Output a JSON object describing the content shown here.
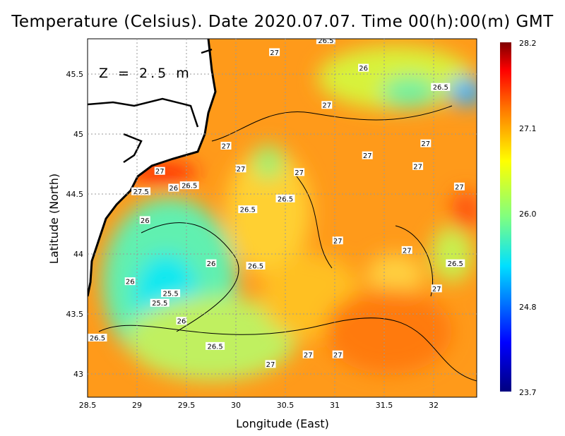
{
  "title": "Temperature (Celsius). Date 2020.07.07. Time 00(h):00(m) GMT",
  "depth_label": "Z = 2.5 m",
  "chart_data": {
    "type": "heatmap",
    "title": "Temperature (Celsius). Date 2020.07.07. Time 00(h):00(m) GMT",
    "xlabel": "Longitude (East)",
    "ylabel": "Latitude (North)",
    "xlim": [
      28.5,
      32.4
    ],
    "ylim": [
      42.8,
      45.8
    ],
    "xticks": [
      "28.5",
      "29",
      "29.5",
      "30",
      "30.5",
      "31",
      "31.5",
      "32"
    ],
    "yticks": [
      "43",
      "43.5",
      "44",
      "44.5",
      "45",
      "45.5"
    ],
    "grid": true,
    "colorbar": {
      "min": 23.7,
      "max": 28.2,
      "ticks": [
        "28.2",
        "27.1",
        "26.0",
        "24.8",
        "23.7"
      ]
    },
    "contour_labels": [
      {
        "t": "26.5",
        "lon": 30.91,
        "lat": 45.78
      },
      {
        "t": "27",
        "lon": 30.39,
        "lat": 45.68
      },
      {
        "t": "26",
        "lon": 31.29,
        "lat": 45.55
      },
      {
        "t": "26.5",
        "lon": 32.07,
        "lat": 45.39
      },
      {
        "t": "27",
        "lon": 30.92,
        "lat": 45.24
      },
      {
        "t": "27",
        "lon": 29.9,
        "lat": 44.9
      },
      {
        "t": "27",
        "lon": 31.33,
        "lat": 44.82
      },
      {
        "t": "27",
        "lon": 31.92,
        "lat": 44.92
      },
      {
        "t": "27",
        "lon": 29.23,
        "lat": 44.69
      },
      {
        "t": "27",
        "lon": 30.05,
        "lat": 44.71
      },
      {
        "t": "27",
        "lon": 30.64,
        "lat": 44.68
      },
      {
        "t": "27",
        "lon": 31.84,
        "lat": 44.73
      },
      {
        "t": "27.5",
        "lon": 29.04,
        "lat": 44.52
      },
      {
        "t": "26",
        "lon": 29.37,
        "lat": 44.55
      },
      {
        "t": "26.5",
        "lon": 29.53,
        "lat": 44.57
      },
      {
        "t": "26.5",
        "lon": 30.12,
        "lat": 44.37
      },
      {
        "t": "26.5",
        "lon": 30.5,
        "lat": 44.46
      },
      {
        "t": "27",
        "lon": 32.26,
        "lat": 44.56
      },
      {
        "t": "26",
        "lon": 29.08,
        "lat": 44.28
      },
      {
        "t": "27",
        "lon": 31.03,
        "lat": 44.11
      },
      {
        "t": "27",
        "lon": 31.73,
        "lat": 44.03
      },
      {
        "t": "26",
        "lon": 29.75,
        "lat": 43.92
      },
      {
        "t": "26.5",
        "lon": 30.2,
        "lat": 43.9
      },
      {
        "t": "26.5",
        "lon": 32.22,
        "lat": 43.92
      },
      {
        "t": "26",
        "lon": 28.93,
        "lat": 43.77
      },
      {
        "t": "25.5",
        "lon": 29.34,
        "lat": 43.67
      },
      {
        "t": "25.5",
        "lon": 29.23,
        "lat": 43.59
      },
      {
        "t": "26",
        "lon": 29.45,
        "lat": 43.44
      },
      {
        "t": "27",
        "lon": 32.03,
        "lat": 43.71
      },
      {
        "t": "26.5",
        "lon": 28.6,
        "lat": 43.3
      },
      {
        "t": "26.5",
        "lon": 29.79,
        "lat": 43.23
      },
      {
        "t": "27",
        "lon": 30.73,
        "lat": 43.16
      },
      {
        "t": "27",
        "lon": 31.03,
        "lat": 43.16
      },
      {
        "t": "27",
        "lon": 30.35,
        "lat": 43.08
      }
    ]
  }
}
